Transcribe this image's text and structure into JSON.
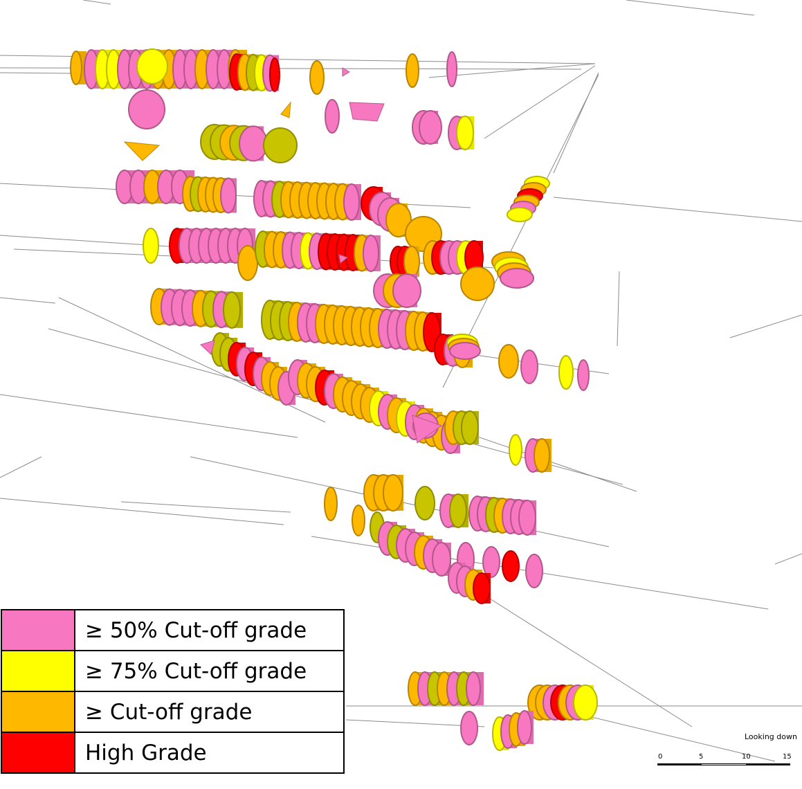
{
  "legend": {
    "items": [
      {
        "label": "≥ 50% Cut-off grade",
        "color": "#f778c1"
      },
      {
        "label": "≥ 75% Cut-off grade",
        "color": "#ffff00"
      },
      {
        "label": "≥ Cut-off grade",
        "color": "#ffb800"
      },
      {
        "label": "High Grade",
        "color": "#ff0000"
      }
    ]
  },
  "view": {
    "orientation": "Looking down"
  },
  "scale_bar": {
    "ticks": [
      "0",
      "5",
      "10",
      "15"
    ]
  },
  "colors": {
    "pink": "#f778c1",
    "yellow": "#ffff00",
    "orange": "#ffb800",
    "red": "#ff0000",
    "olive": "#c8c400",
    "dark_orange": "#d08a00",
    "drill_trace": "#8a8a8a"
  }
}
